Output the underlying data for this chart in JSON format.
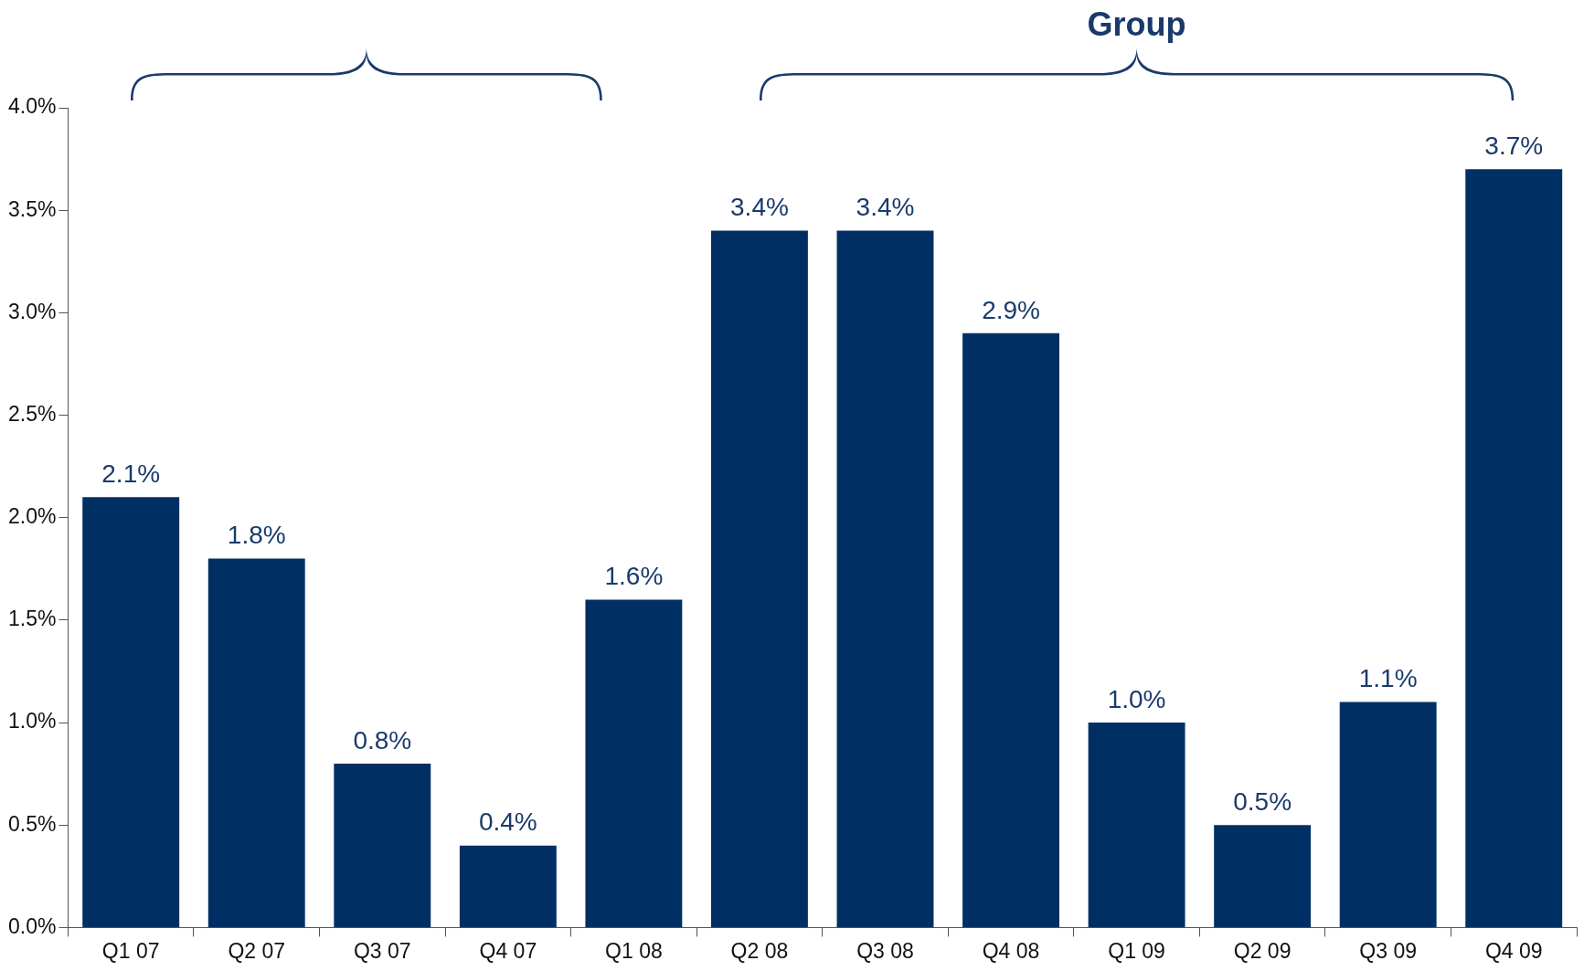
{
  "chart_data": {
    "type": "bar",
    "categories": [
      "Q1 07",
      "Q2 07",
      "Q3 07",
      "Q4 07",
      "Q1 08",
      "Q2 08",
      "Q3 08",
      "Q4 08",
      "Q1 09",
      "Q2 09",
      "Q3 09",
      "Q4 09"
    ],
    "values": [
      2.1,
      1.8,
      0.8,
      0.4,
      1.6,
      3.4,
      3.4,
      2.9,
      1.0,
      0.5,
      1.1,
      3.7
    ],
    "color": "#003063",
    "ylim": [
      0,
      4
    ],
    "yticks": [
      {
        "value": 0,
        "label": "0.0%"
      },
      {
        "value": 0.5,
        "label": "0.5%"
      },
      {
        "value": 1,
        "label": "1.0%"
      },
      {
        "value": 1.5,
        "label": "1.5%"
      },
      {
        "value": 2,
        "label": "2.0%"
      },
      {
        "value": 2.5,
        "label": "2.5%"
      },
      {
        "value": 3,
        "label": "3.0%"
      },
      {
        "value": 3.5,
        "label": "3.5%"
      },
      {
        "value": 4,
        "label": "4.0%"
      }
    ],
    "value_labels": [
      "2.1%",
      "1.8%",
      "0.8%",
      "0.4%",
      "1.6%",
      "3.4%",
      "3.4%",
      "2.9%",
      "1.0%",
      "0.5%",
      "1.1%",
      "3.7%"
    ],
    "annotations": [
      "Group"
    ],
    "grid": false,
    "legend": false
  }
}
